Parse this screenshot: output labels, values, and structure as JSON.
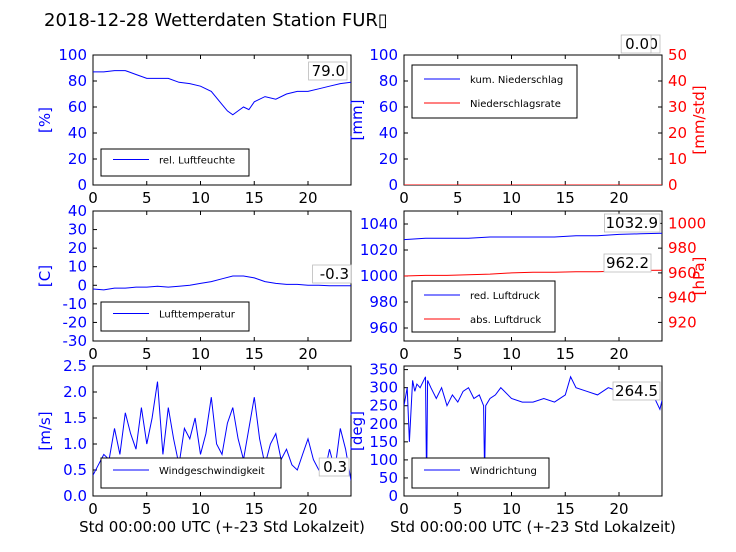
{
  "title": "2018-12-28 Wetterdaten Station FUR▯",
  "colors": {
    "primary": "#0000ff",
    "secondary": "#ff0000",
    "black": "#000000"
  },
  "chart_data": [
    {
      "type": "line",
      "panel": "top-left",
      "ylabel": "[%]",
      "xlim": [
        0,
        24
      ],
      "ylim": [
        0,
        100
      ],
      "x_ticks": [
        0,
        5,
        10,
        15,
        20
      ],
      "y_ticks": [
        0,
        20,
        40,
        60,
        80,
        100
      ],
      "legend": "bottom-left",
      "last_value": "79.0",
      "series": [
        {
          "name": "rel. Luftfeuchte",
          "color": "#0000ff",
          "x": [
            0,
            1,
            2,
            3,
            4,
            5,
            6,
            7,
            8,
            9,
            10,
            11,
            12,
            12.5,
            13,
            13.5,
            14,
            14.5,
            15,
            16,
            17,
            18,
            19,
            20,
            21,
            22,
            23,
            24
          ],
          "y": [
            87,
            87,
            88,
            88,
            85,
            82,
            82,
            82,
            79,
            78,
            76,
            72,
            62,
            57,
            54,
            57,
            60,
            58,
            64,
            68,
            66,
            70,
            72,
            72,
            74,
            76,
            78,
            79
          ]
        }
      ]
    },
    {
      "type": "line",
      "panel": "top-right",
      "ylabel": "[mm]",
      "ylabel_right": "[mm/std]",
      "xlim": [
        0,
        24
      ],
      "ylim": [
        0,
        100
      ],
      "ylim_right": [
        0,
        50
      ],
      "x_ticks": [
        0,
        5,
        10,
        15,
        20
      ],
      "y_ticks": [
        0,
        20,
        40,
        60,
        80,
        100
      ],
      "y_ticks_right": [
        0,
        10,
        20,
        30,
        40,
        50
      ],
      "legend": "top-left",
      "last_value": "0.0",
      "last_value_2": "0.0",
      "series": [
        {
          "name": "kum. Niederschlag",
          "color": "#0000ff",
          "x": [
            0,
            24
          ],
          "y": [
            0,
            0
          ]
        },
        {
          "name": "Niederschlagsrate",
          "color": "#ff0000",
          "x": [
            0,
            24
          ],
          "y": [
            0,
            0
          ]
        }
      ]
    },
    {
      "type": "line",
      "panel": "middle-left",
      "ylabel": "[C]",
      "xlim": [
        0,
        24
      ],
      "ylim": [
        -30,
        40
      ],
      "x_ticks": [
        0,
        5,
        10,
        15,
        20
      ],
      "y_ticks": [
        -30,
        -20,
        -10,
        0,
        10,
        20,
        30,
        40
      ],
      "legend": "bottom-left",
      "last_value": "-0.3",
      "series": [
        {
          "name": "Lufttemperatur",
          "color": "#0000ff",
          "x": [
            0,
            1,
            2,
            3,
            4,
            5,
            6,
            7,
            8,
            9,
            10,
            11,
            12,
            13,
            14,
            15,
            16,
            17,
            18,
            19,
            20,
            21,
            22,
            23,
            24
          ],
          "y": [
            -2,
            -2.5,
            -1.5,
            -1.5,
            -1,
            -1,
            -0.5,
            -1,
            -0.5,
            0,
            1,
            2,
            3.5,
            5,
            5,
            4,
            2,
            1,
            0.5,
            0.5,
            0,
            0,
            -0.3,
            -0.3,
            -0.3
          ]
        }
      ]
    },
    {
      "type": "line",
      "panel": "middle-right",
      "ylabel_right": "[hPa]",
      "xlim": [
        0,
        24
      ],
      "ylim": [
        950,
        1050
      ],
      "ylim_right": [
        905,
        1010
      ],
      "x_ticks": [
        0,
        5,
        10,
        15,
        20
      ],
      "y_ticks": [
        960,
        980,
        1000,
        1020,
        1040
      ],
      "y_ticks_right": [
        920,
        940,
        960,
        980,
        1000
      ],
      "legend": "bottom-left",
      "last_value": "1032.9",
      "last_value_2": "962.2",
      "series": [
        {
          "name": "red. Luftdruck",
          "color": "#0000ff",
          "x": [
            0,
            2,
            4,
            6,
            8,
            10,
            12,
            14,
            16,
            18,
            20,
            22,
            24
          ],
          "y": [
            1028,
            1029,
            1029,
            1029,
            1030,
            1030,
            1030,
            1030,
            1031,
            1031,
            1032,
            1032.5,
            1032.9
          ]
        },
        {
          "name": "abs. Luftdruck",
          "color": "#ff0000",
          "x": [
            0,
            2,
            4,
            6,
            8,
            10,
            12,
            14,
            16,
            18,
            20,
            22,
            24
          ],
          "y": [
            957.5,
            958,
            958,
            958.5,
            959,
            960,
            960.5,
            960.5,
            961,
            961,
            961.5,
            962,
            962.2
          ]
        }
      ]
    },
    {
      "type": "line",
      "panel": "bottom-left",
      "ylabel": "[m/s]",
      "xlabel": "Std 00:00:00 UTC (+-23 Std Lokalzeit)",
      "xlim": [
        0,
        24
      ],
      "ylim": [
        0,
        2.5
      ],
      "x_ticks": [
        0,
        5,
        10,
        15,
        20
      ],
      "y_ticks": [
        0.0,
        0.5,
        1.0,
        1.5,
        2.0,
        2.5
      ],
      "legend": "bottom-left",
      "last_value": "0.3",
      "series": [
        {
          "name": "Windgeschwindigkeit",
          "color": "#0000ff",
          "x": [
            0,
            0.5,
            1,
            1.5,
            2,
            2.5,
            3,
            3.5,
            4,
            4.5,
            5,
            5.5,
            6,
            6.5,
            7,
            7.5,
            8,
            8.5,
            9,
            9.5,
            10,
            10.5,
            11,
            11.5,
            12,
            12.5,
            13,
            13.5,
            14,
            14.5,
            15,
            15.5,
            16,
            16.5,
            17,
            17.5,
            18,
            18.5,
            19,
            19.5,
            20,
            20.5,
            21,
            21.5,
            22,
            22.5,
            23,
            23.5,
            24
          ],
          "y": [
            0.4,
            0.6,
            0.8,
            0.7,
            1.3,
            0.8,
            1.6,
            1.2,
            0.9,
            1.7,
            1.0,
            1.5,
            2.2,
            0.8,
            1.7,
            1.1,
            0.6,
            1.3,
            1.1,
            1.5,
            0.8,
            1.2,
            1.9,
            1.0,
            0.8,
            1.4,
            1.7,
            1.1,
            0.7,
            1.3,
            1.9,
            1.1,
            0.6,
            1.0,
            1.2,
            0.7,
            0.9,
            0.6,
            0.5,
            0.8,
            1.1,
            0.7,
            0.5,
            0.4,
            0.9,
            0.5,
            1.3,
            0.9,
            0.3
          ]
        }
      ]
    },
    {
      "type": "line",
      "panel": "bottom-right",
      "ylabel": "[deg]",
      "xlabel": "Std 00:00:00 UTC (+-23 Std Lokalzeit)",
      "xlim": [
        0,
        24
      ],
      "ylim": [
        0,
        360
      ],
      "x_ticks": [
        0,
        5,
        10,
        15,
        20
      ],
      "y_ticks": [
        0,
        50,
        100,
        150,
        200,
        250,
        300,
        350
      ],
      "legend": "bottom-left",
      "last_value": "264.5",
      "series": [
        {
          "name": "Windrichtung",
          "color": "#0000ff",
          "x": [
            0,
            0.3,
            0.5,
            0.8,
            1,
            1.2,
            1.5,
            2,
            2.1,
            2.2,
            2.5,
            3,
            3.5,
            4,
            4.5,
            5,
            5.5,
            6,
            6.5,
            7,
            7.4,
            7.5,
            7.6,
            8,
            8.5,
            9,
            10,
            11,
            12,
            13,
            14,
            15,
            15.5,
            16,
            17,
            18,
            19,
            20,
            21,
            22,
            23,
            23.8,
            24
          ],
          "y": [
            250,
            300,
            150,
            320,
            290,
            310,
            300,
            330,
            30,
            320,
            300,
            270,
            300,
            250,
            280,
            260,
            290,
            300,
            270,
            280,
            250,
            60,
            250,
            270,
            280,
            300,
            270,
            260,
            260,
            270,
            260,
            280,
            330,
            300,
            290,
            280,
            300,
            290,
            300,
            280,
            290,
            240,
            264.5
          ]
        }
      ]
    }
  ]
}
